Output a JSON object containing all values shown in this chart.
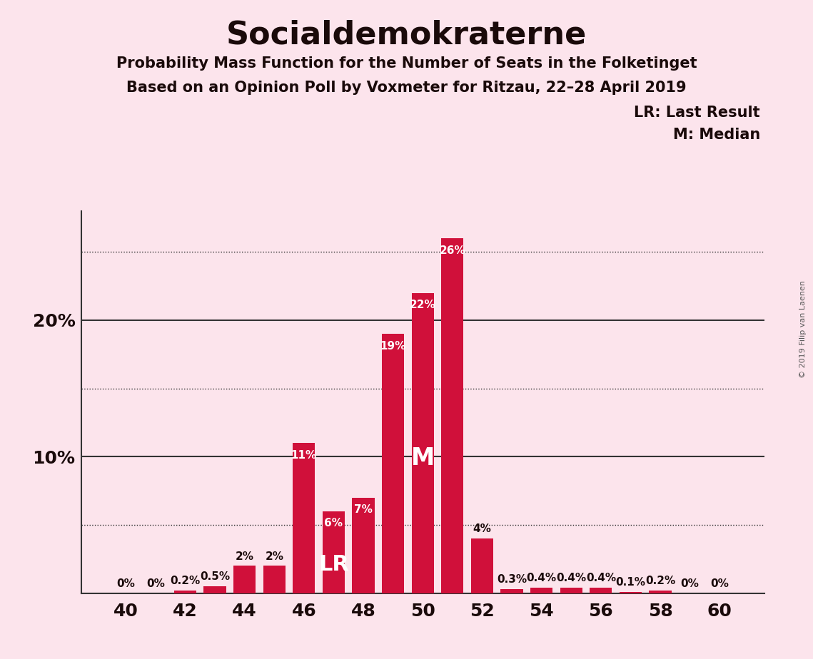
{
  "title": "Socialdemokraterne",
  "subtitle1": "Probability Mass Function for the Number of Seats in the Folketinget",
  "subtitle2": "Based on an Opinion Poll by Voxmeter for Ritzau, 22–28 April 2019",
  "copyright": "© 2019 Filip van Laenen",
  "background_color": "#fce4ec",
  "bar_color": "#d0103a",
  "seats": [
    40,
    41,
    42,
    43,
    44,
    45,
    46,
    47,
    48,
    49,
    50,
    51,
    52,
    53,
    54,
    55,
    56,
    57,
    58,
    59,
    60
  ],
  "probabilities": [
    0.0,
    0.0,
    0.2,
    0.5,
    2.0,
    2.0,
    11.0,
    6.0,
    7.0,
    19.0,
    22.0,
    26.0,
    4.0,
    0.3,
    0.4,
    0.4,
    0.4,
    0.1,
    0.2,
    0.0,
    0.0
  ],
  "last_result_seat": 47,
  "median_seat": 50,
  "ylim": [
    0,
    28
  ],
  "solid_grid": [
    10,
    20
  ],
  "dotted_grid": [
    5,
    15,
    25
  ],
  "xlabel_seats": [
    40,
    42,
    44,
    46,
    48,
    50,
    52,
    54,
    56,
    58,
    60
  ],
  "bar_color_dark": "#d0103a",
  "label_color_light": "#ffffff",
  "legend_LR": "LR: Last Result",
  "legend_M": "M: Median",
  "text_color": "#1a0a0a"
}
